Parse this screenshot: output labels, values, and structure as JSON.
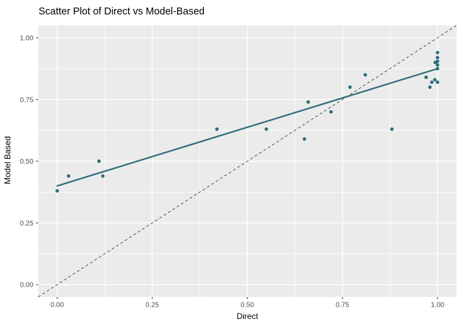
{
  "chart_data": {
    "type": "scatter",
    "title": "Scatter Plot of Direct vs Model-Based",
    "xlabel": "Direct",
    "ylabel": "Model Based",
    "xlim": [
      -0.05,
      1.05
    ],
    "ylim": [
      -0.05,
      1.05
    ],
    "grid": "on",
    "legend": "none",
    "x_ticks": [
      0.0,
      0.25,
      0.5,
      0.75,
      1.0
    ],
    "x_tick_labels": [
      "0.00",
      "0.25",
      "0.50",
      "0.75",
      "1.00"
    ],
    "y_ticks": [
      0.0,
      0.25,
      0.5,
      0.75,
      1.0
    ],
    "y_tick_labels": [
      "0.00",
      "0.25",
      "0.50",
      "0.75",
      "1.00"
    ],
    "minor_gridline_positions": [
      0.125,
      0.375,
      0.625,
      0.875
    ],
    "points": [
      [
        0.0,
        0.38
      ],
      [
        0.03,
        0.44
      ],
      [
        0.11,
        0.5
      ],
      [
        0.12,
        0.44
      ],
      [
        0.42,
        0.63
      ],
      [
        0.55,
        0.63
      ],
      [
        0.65,
        0.59
      ],
      [
        0.66,
        0.74
      ],
      [
        0.72,
        0.7
      ],
      [
        0.77,
        0.8
      ],
      [
        0.81,
        0.85
      ],
      [
        0.88,
        0.63
      ],
      [
        0.97,
        0.84
      ],
      [
        0.98,
        0.8
      ],
      [
        0.985,
        0.82
      ],
      [
        0.993,
        0.83
      ],
      [
        1.0,
        0.82
      ],
      [
        0.994,
        0.9
      ],
      [
        1.0,
        0.875
      ],
      [
        1.0,
        0.89
      ],
      [
        1.0,
        0.905
      ],
      [
        1.0,
        0.92
      ],
      [
        1.0,
        0.94
      ]
    ],
    "regression_line": {
      "x1": 0.0,
      "y1": 0.4,
      "x2": 1.0,
      "y2": 0.875
    },
    "identity_line": {
      "slope": 1,
      "intercept": 0,
      "style": "dashed"
    },
    "colors": {
      "point": "#2D6B78",
      "regression": "#2D6B78",
      "panel_background": "#EBEBEB",
      "gridline": "#FFFFFF",
      "dashed_line": "#3C3C3C",
      "tick_mark": "#333333",
      "tick_label": "#4D4D4D",
      "title": "#000000",
      "axis_title": "#000000",
      "figure_background": "#FFFFFF"
    }
  }
}
